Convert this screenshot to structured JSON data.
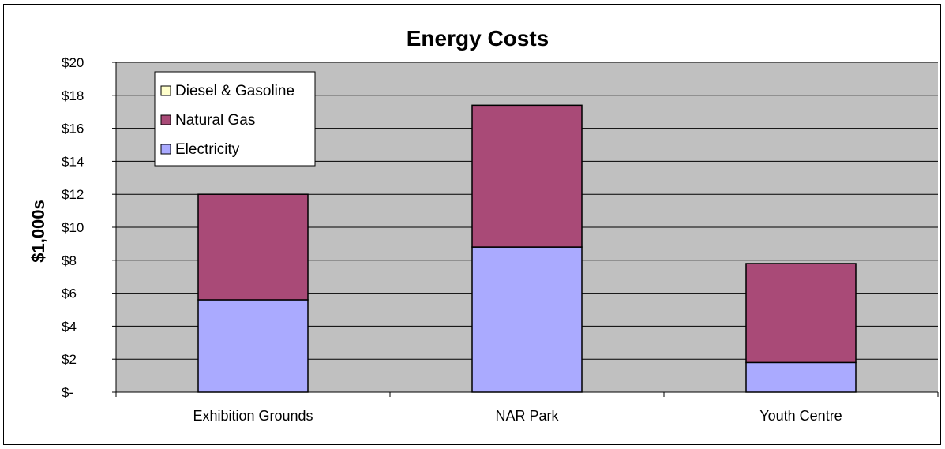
{
  "chart_data": {
    "type": "bar",
    "stacked": true,
    "title": "Energy Costs",
    "xlabel": "",
    "ylabel": "$1,000s",
    "ylim": [
      0,
      20
    ],
    "yticks": [
      0,
      2,
      4,
      6,
      8,
      10,
      12,
      14,
      16,
      18,
      20
    ],
    "ytick_labels": [
      "$-",
      "$2",
      "$4",
      "$6",
      "$8",
      "$10",
      "$12",
      "$14",
      "$16",
      "$18",
      "$20"
    ],
    "categories": [
      "Exhibition Grounds",
      "NAR Park",
      "Youth Centre"
    ],
    "series": [
      {
        "name": "Electricity",
        "values": [
          5.6,
          8.8,
          1.8
        ],
        "color": "#aaaaff"
      },
      {
        "name": "Natural Gas",
        "values": [
          6.4,
          8.6,
          6.0
        ],
        "color": "#a94a77"
      },
      {
        "name": "Diesel & Gasoline",
        "values": [
          0,
          0,
          0
        ],
        "color": "#ffffcc"
      }
    ],
    "legend_order": [
      "Diesel & Gasoline",
      "Natural Gas",
      "Electricity"
    ],
    "legend_position": "top-left",
    "plot_background": "#c0c0c0",
    "grid": true
  }
}
